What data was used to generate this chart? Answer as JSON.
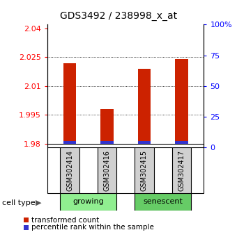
{
  "title": "GDS3492 / 238998_x_at",
  "samples": [
    "GSM302414",
    "GSM302416",
    "GSM302415",
    "GSM302417"
  ],
  "groups": [
    {
      "label": "growing",
      "indices": [
        0,
        1
      ],
      "color": "#90ee90"
    },
    {
      "label": "senescent",
      "indices": [
        2,
        3
      ],
      "color": "#66cc66"
    }
  ],
  "red_values": [
    2.022,
    1.998,
    2.019,
    2.024
  ],
  "blue_values": [
    1.9815,
    1.9815,
    1.9815,
    1.9815
  ],
  "base_value": 1.98,
  "ylim_left": [
    1.978,
    2.042
  ],
  "ylim_right": [
    0,
    100
  ],
  "left_ticks": [
    1.98,
    1.995,
    2.01,
    2.025,
    2.04
  ],
  "left_tick_labels": [
    "1.98",
    "1.995",
    "2.01",
    "2.025",
    "2.04"
  ],
  "right_ticks": [
    0,
    25,
    50,
    75,
    100
  ],
  "right_tick_labels": [
    "0",
    "25",
    "50",
    "75",
    "100%"
  ],
  "grid_values": [
    2.025,
    2.01,
    1.995
  ],
  "bar_color_red": "#cc2200",
  "bar_color_blue": "#3333cc",
  "bar_width": 0.35,
  "xlabel_group": "cell type",
  "legend_red": "transformed count",
  "legend_blue": "percentile rank within the sample",
  "gray_box_color": "#d0d0d0",
  "title_fontsize": 10,
  "tick_fontsize": 8,
  "label_fontsize": 8
}
